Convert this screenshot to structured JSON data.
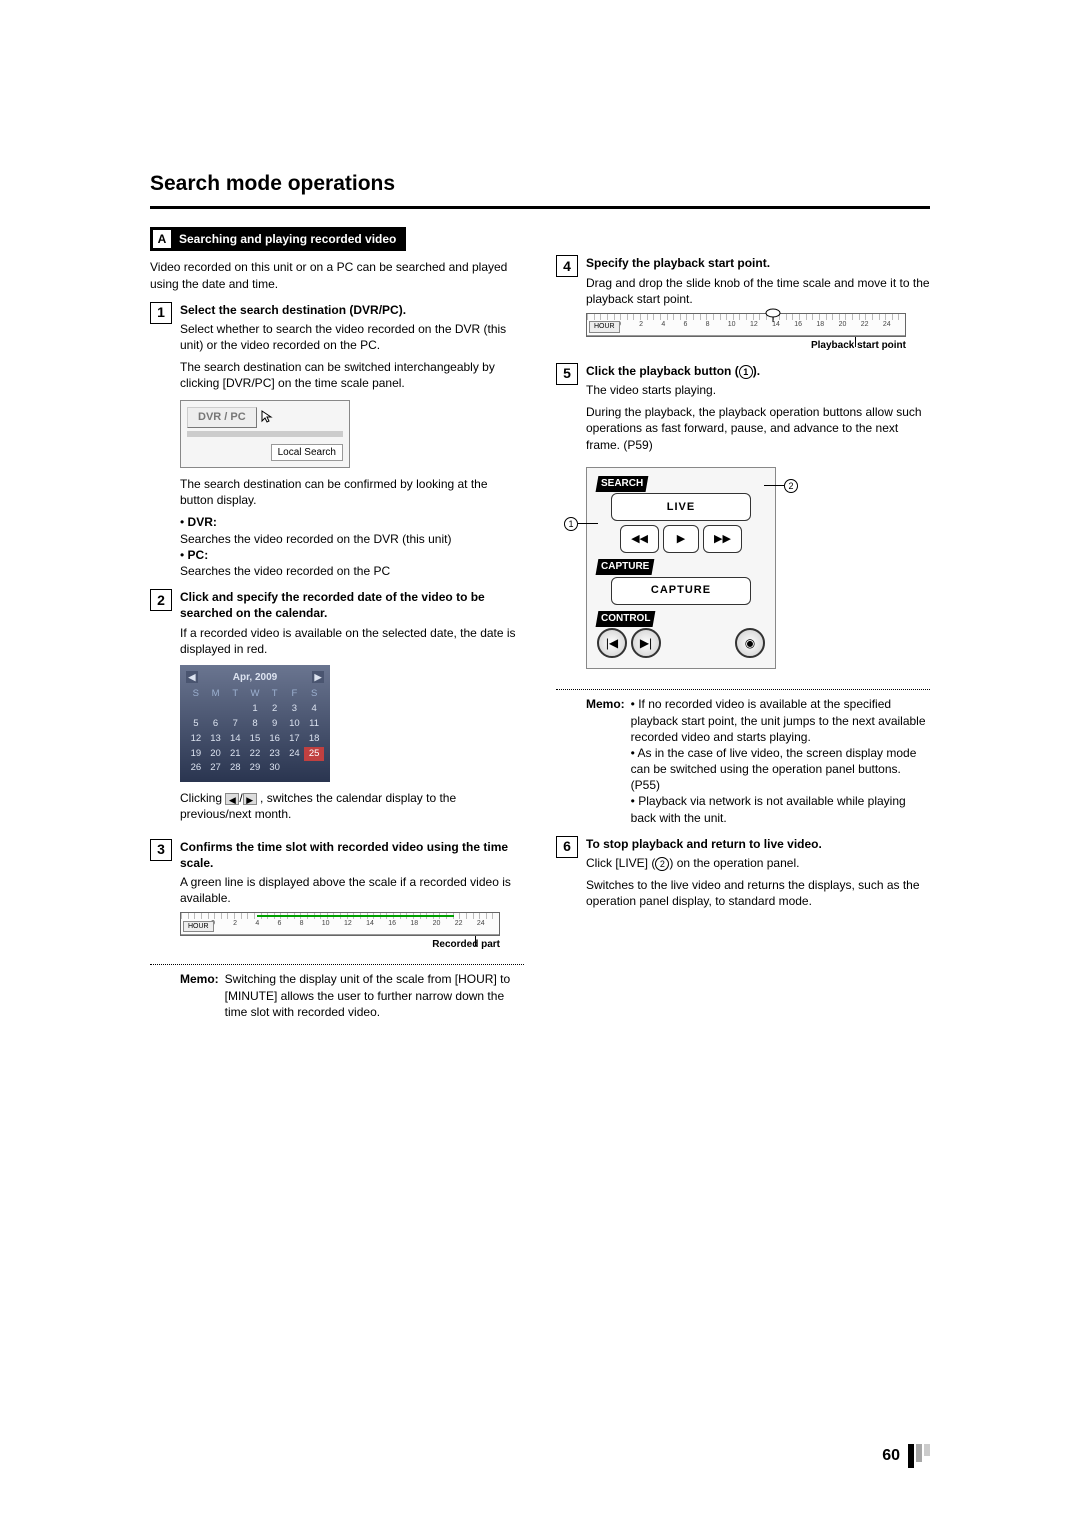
{
  "page": {
    "title": "Search mode operations",
    "number": "60"
  },
  "sectionA": {
    "letter": "A",
    "heading": "Searching and playing recorded video",
    "intro": "Video recorded on this unit or on a PC can be searched and played using the date and time."
  },
  "step1": {
    "num": "1",
    "title": "Select the search destination (DVR/PC).",
    "p1": "Select whether to search the video recorded on the DVR (this unit) or the video recorded on the PC.",
    "p2": "The search destination can be switched interchangeably by clicking  [DVR/PC] on the time scale panel.",
    "dvrpc": "DVR / PC",
    "localsearch": "Local Search",
    "p3": "The search destination can be confirmed by looking at the button display.",
    "dvr_lab": "DVR:",
    "dvr_desc": "Searches the video recorded on the DVR (this unit)",
    "pc_lab": "PC:",
    "pc_desc": "Searches the video recorded on the PC"
  },
  "step2": {
    "num": "2",
    "title": "Click and specify the recorded date of the video to be searched on the calendar.",
    "p1": "If a recorded video is available on the selected date, the date is displayed in red.",
    "cal_month": "Apr, 2009",
    "days": [
      "S",
      "M",
      "T",
      "W",
      "T",
      "F",
      "S"
    ],
    "rows": [
      [
        "",
        "",
        "",
        "1",
        "2",
        "3",
        "4"
      ],
      [
        "5",
        "6",
        "7",
        "8",
        "9",
        "10",
        "11"
      ],
      [
        "12",
        "13",
        "14",
        "15",
        "16",
        "17",
        "18"
      ],
      [
        "19",
        "20",
        "21",
        "22",
        "23",
        "24",
        "25"
      ],
      [
        "26",
        "27",
        "28",
        "29",
        "30",
        "",
        ""
      ]
    ],
    "p2a": "Clicking ",
    "p2b": " , switches the calendar display to the previous/next month."
  },
  "step3": {
    "num": "3",
    "title": "Confirms the time slot with recorded video using the time scale.",
    "p1": "A green line is displayed above the scale if a recorded video is available.",
    "callout": "Recorded part"
  },
  "memo1": {
    "label": "Memo:",
    "text": "Switching the display unit of the scale from [HOUR] to [MINUTE] allows the user to further narrow down the time slot with recorded video."
  },
  "step4": {
    "num": "4",
    "title": "Specify the playback start point.",
    "p1": "Drag and drop the slide knob of the time scale and move it to the playback start point.",
    "callout": "Playback start point"
  },
  "step5": {
    "num": "5",
    "title_a": "Click the playback button (",
    "title_b": ").",
    "p1": "The video starts playing.",
    "p2": "During the playback, the playback operation buttons allow such operations as fast forward, pause, and advance to the next frame. (P59)",
    "panel": {
      "search": "SEARCH",
      "live": "LIVE",
      "capture_sec": "CAPTURE",
      "capture_btn": "CAPTURE",
      "control": "CONTROL"
    }
  },
  "memo2": {
    "label": "Memo:",
    "b1": "If no recorded video is available at the specified playback start point, the unit jumps to the next available recorded video and starts playing.",
    "b2": "As in the case of live video, the screen display mode can be switched using the operation panel buttons. (P55)",
    "b3": "Playback via network is not available while playing back with the unit."
  },
  "step6": {
    "num": "6",
    "title": "To stop playback and return to live video.",
    "p1a": "Click [LIVE] (",
    "p1b": ") on the operation panel.",
    "p2": "Switches to the live video and returns the displays, such as the operation panel display, to standard mode."
  },
  "timescale": {
    "hour": "HOUR",
    "ticks": [
      "0",
      "2",
      "4",
      "6",
      "8",
      "10",
      "12",
      "14",
      "16",
      "18",
      "20",
      "22",
      "24"
    ]
  }
}
